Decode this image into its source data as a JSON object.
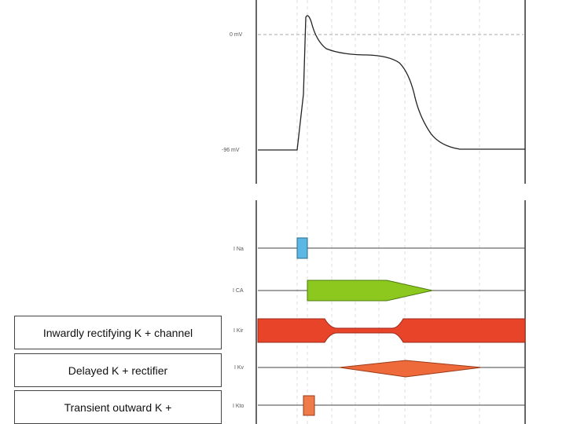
{
  "voltage_labels": {
    "zero": "0 mV",
    "rest": "-96 mV"
  },
  "currents": [
    {
      "label": "I Na",
      "color": "#5bb8e4"
    },
    {
      "label": "I CA",
      "color": "#8cc81e"
    },
    {
      "label": "I Kir",
      "color": "#e8442a"
    },
    {
      "label": "I Kv",
      "color": "#ef6a3a"
    },
    {
      "label": "I Kto",
      "color": "#ef7a4a"
    }
  ],
  "channel_boxes": [
    "Inwardly rectifying K + channel",
    "Delayed K + rectifier",
    "Transient outward K +"
  ]
}
